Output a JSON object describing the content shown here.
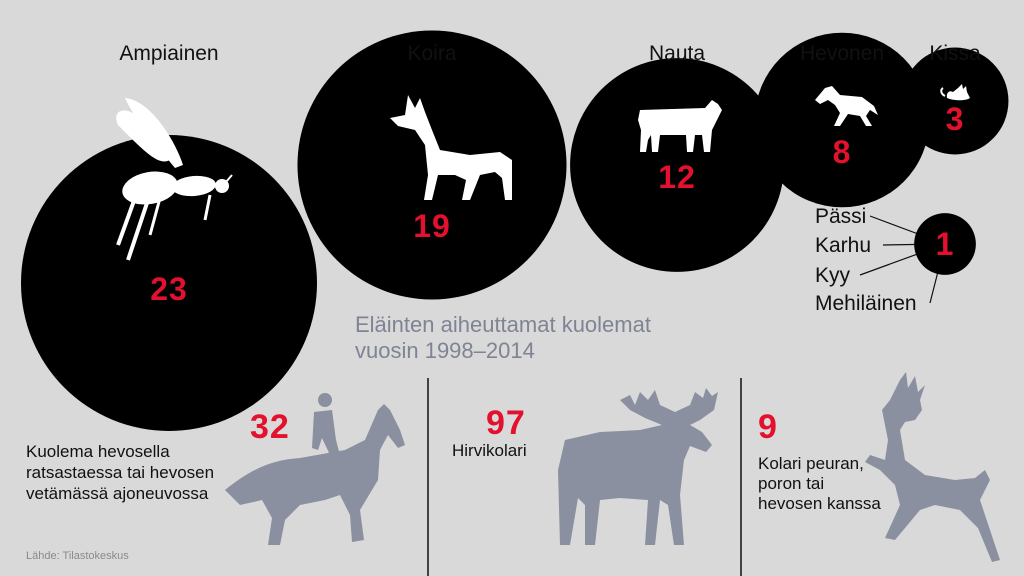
{
  "chart_data": {
    "type": "bubble",
    "title": "Eläinten aiheuttamat kuolemat vuosin 1998–2014",
    "categories": [
      "Ampiainen",
      "Koira",
      "Nauta",
      "Hevonen",
      "Kissa"
    ],
    "values": [
      23,
      19,
      12,
      8,
      3
    ],
    "singles": {
      "labels": [
        "Pässi",
        "Karhu",
        "Kyy",
        "Mehiläinen"
      ],
      "value": 1
    },
    "other_causes": [
      {
        "value": 32,
        "label_lines": [
          "Kuolema hevosella",
          "ratsastaessa tai hevosen",
          "vetämässä ajoneuvossa"
        ],
        "icon": "horse-rider-icon"
      },
      {
        "value": 97,
        "label_lines": [
          "Hirvikolari"
        ],
        "icon": "moose-icon"
      },
      {
        "value": 9,
        "label_lines": [
          "Kolari peuran,",
          "poron tai",
          "hevosen kanssa"
        ],
        "icon": "deer-icon"
      }
    ]
  },
  "title_lines": [
    "Eläinten aiheuttamat kuolemat",
    "vuosin 1998–2014"
  ],
  "source": "Lähde: Tilastokeskus",
  "colors": {
    "background": "#d9d9d9",
    "circle": "#000000",
    "number": "#e3102e",
    "silhouette_light": "#ffffff",
    "silhouette_gray": "#8a90a0",
    "subtitle": "#7f8494"
  },
  "icons": [
    "wasp-icon",
    "dog-icon",
    "cow-icon",
    "horse-icon",
    "cat-icon",
    "horse-rider-icon",
    "moose-icon",
    "deer-icon"
  ]
}
